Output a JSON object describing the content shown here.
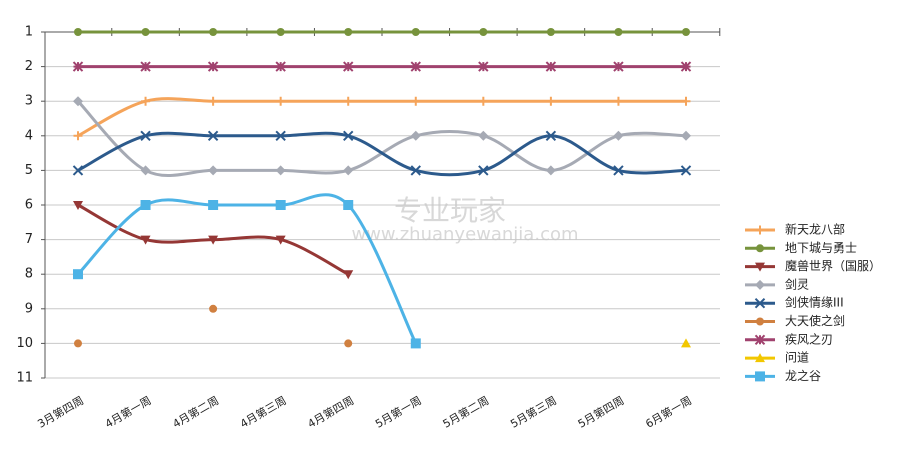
{
  "chart_data": {
    "type": "line",
    "watermark": "专业玩家",
    "watermark_url": "www.zhuanyewanjia.com",
    "categories": [
      "3月第四周",
      "4月第一周",
      "4月第二周",
      "4月第三周",
      "4月第四周",
      "5月第一周",
      "5月第二周",
      "5月第三周",
      "5月第四周",
      "6月第一周"
    ],
    "ylim": [
      11,
      1
    ],
    "yticks": [
      1,
      2,
      3,
      4,
      5,
      6,
      7,
      8,
      9,
      10,
      11
    ],
    "grid": true,
    "legend": "right",
    "smooth": true,
    "series": [
      {
        "name": "新天龙八部",
        "color": "#f5a45a",
        "marker": "plus",
        "values": [
          4,
          3,
          3,
          3,
          3,
          3,
          3,
          3,
          3,
          3
        ]
      },
      {
        "name": "地下城与勇士",
        "color": "#77933c",
        "marker": "circle",
        "values": [
          1,
          1,
          1,
          1,
          1,
          1,
          1,
          1,
          1,
          1
        ]
      },
      {
        "name": "魔兽世界（国服）",
        "color": "#953735",
        "marker": "triangle-down",
        "values": [
          6,
          7,
          7,
          7,
          8,
          null,
          null,
          null,
          null,
          null
        ]
      },
      {
        "name": "剑灵",
        "color": "#a6aab4",
        "marker": "diamond",
        "values": [
          3,
          5,
          5,
          5,
          5,
          4,
          4,
          5,
          4,
          4
        ]
      },
      {
        "name": "剑侠情缘III",
        "color": "#2c5a8c",
        "marker": "x",
        "values": [
          5,
          4,
          4,
          4,
          4,
          5,
          5,
          4,
          5,
          5
        ]
      },
      {
        "name": "大天使之剑",
        "color": "#d08040",
        "marker": "circle",
        "values": [
          10,
          null,
          9,
          null,
          10,
          null,
          null,
          null,
          null,
          null
        ]
      },
      {
        "name": "疾风之刃",
        "color": "#a0426e",
        "marker": "asterisk",
        "values": [
          2,
          2,
          2,
          2,
          2,
          2,
          2,
          2,
          2,
          2
        ]
      },
      {
        "name": "问道",
        "color": "#f2c700",
        "marker": "triangle",
        "values": [
          null,
          null,
          null,
          null,
          null,
          null,
          null,
          null,
          null,
          10
        ]
      },
      {
        "name": "龙之谷",
        "color": "#4db3e6",
        "marker": "square",
        "values": [
          8,
          6,
          6,
          6,
          6,
          10,
          null,
          null,
          null,
          null
        ]
      }
    ]
  }
}
